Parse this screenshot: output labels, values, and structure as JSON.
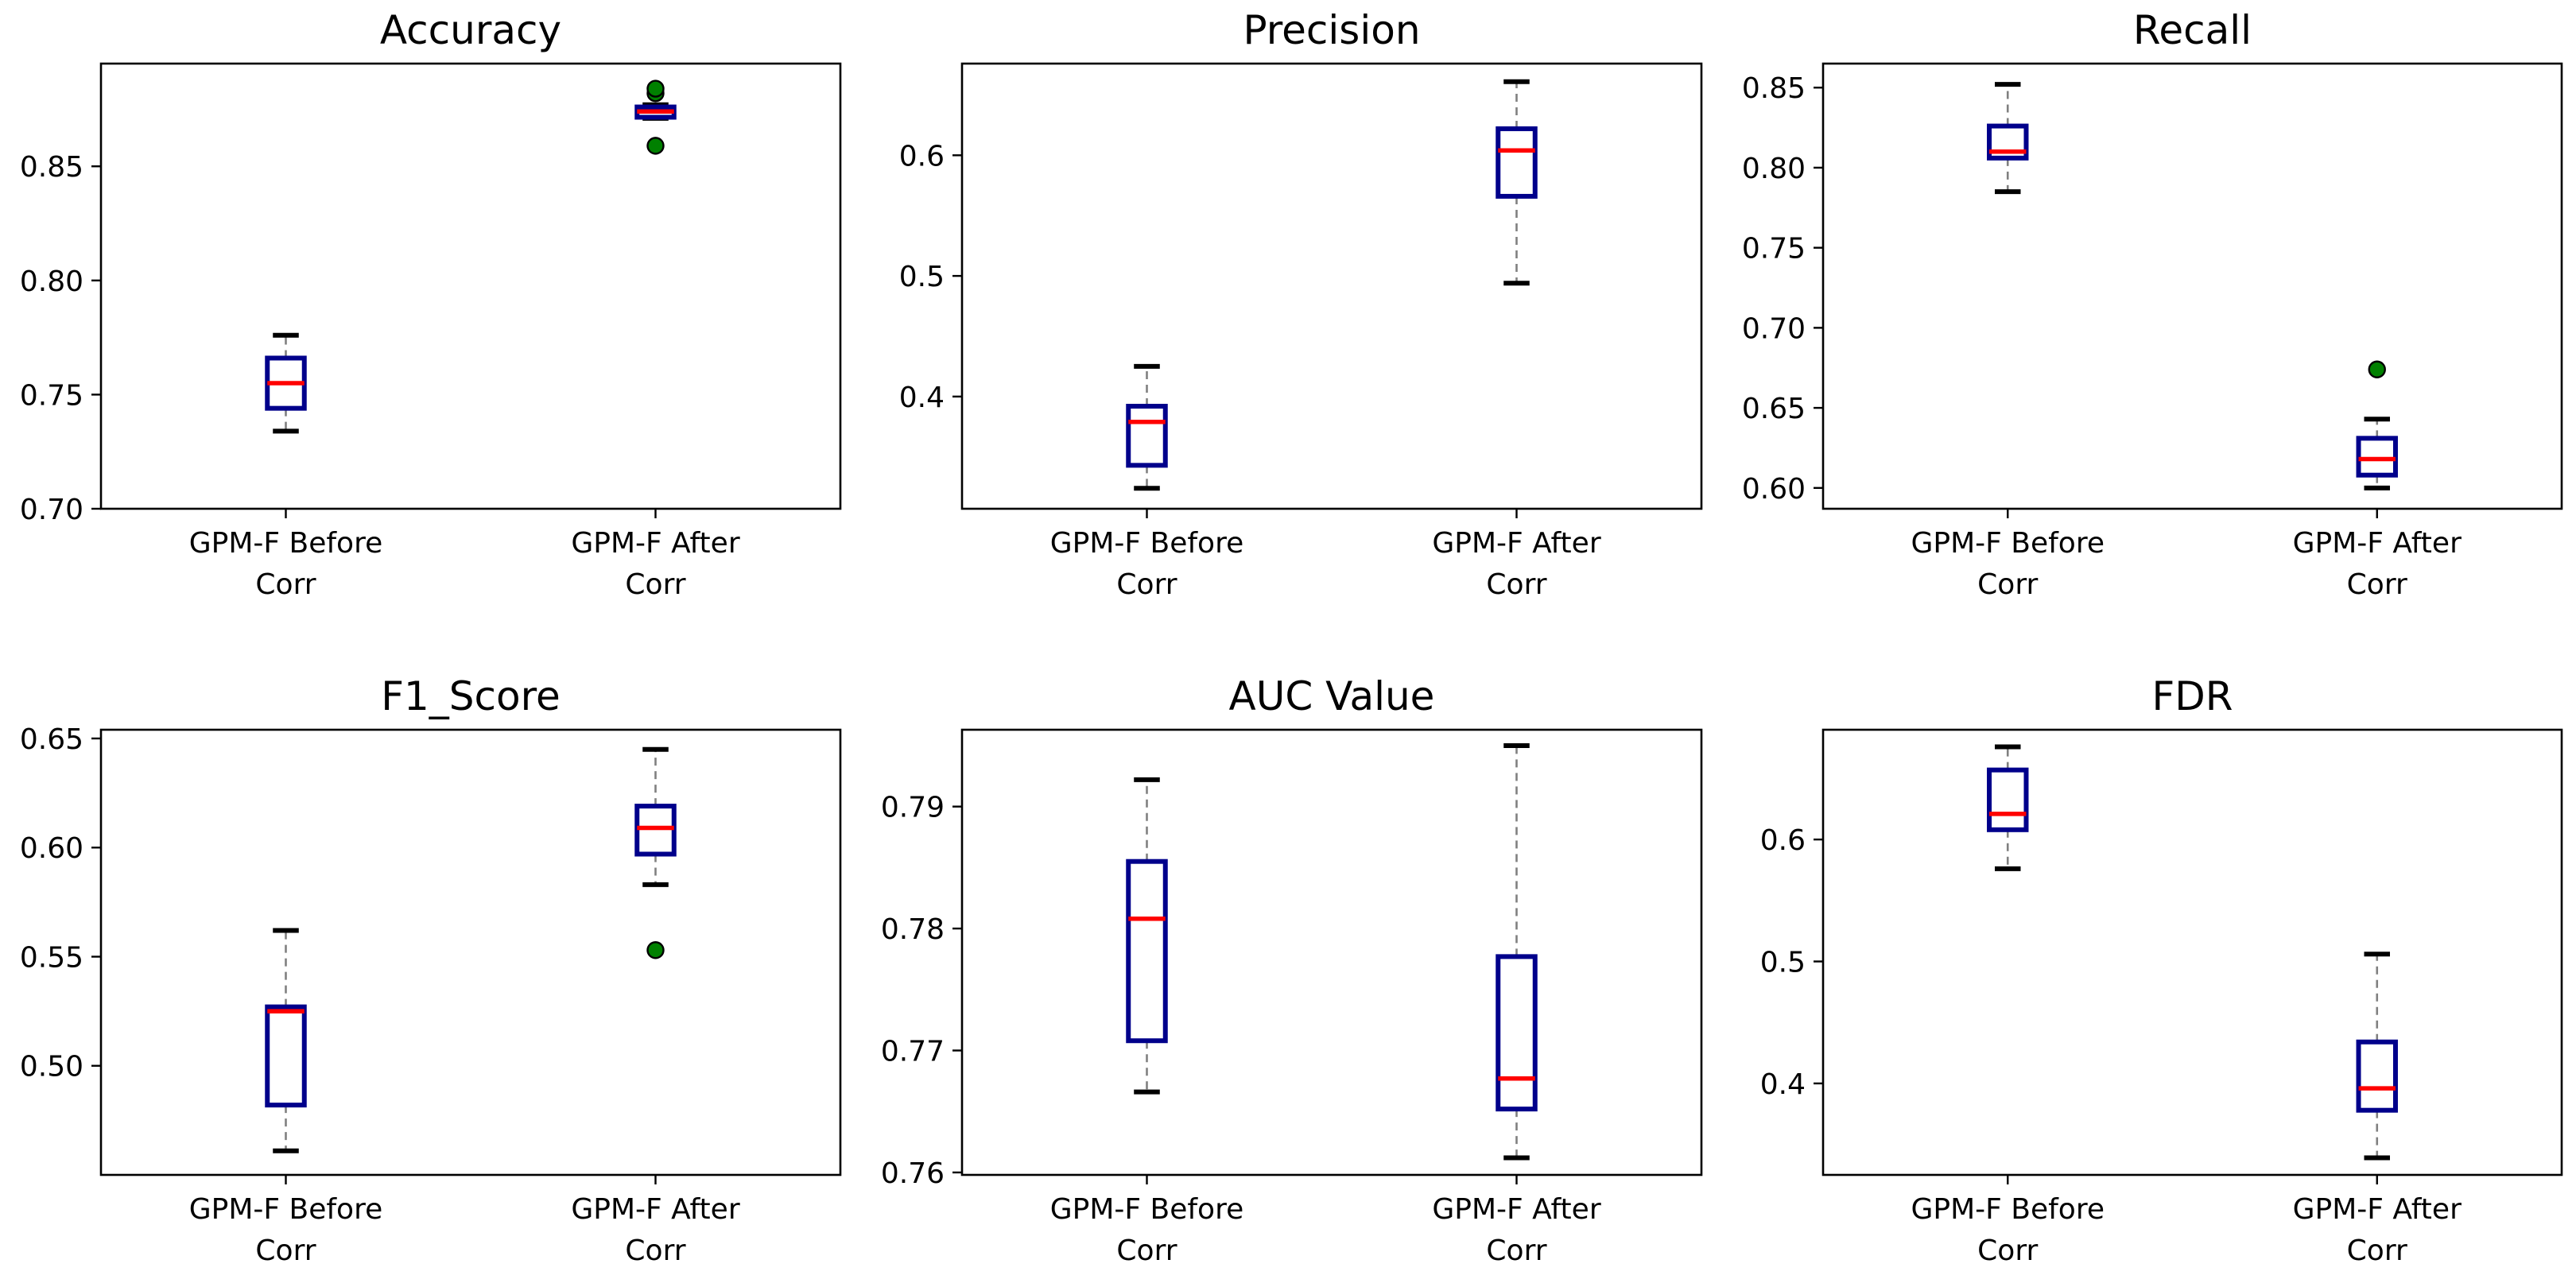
{
  "figure": {
    "layout": "2 rows x 3 columns",
    "colors": {
      "box": "#00008b",
      "median": "#ff0000",
      "whisker": "#808080",
      "cap": "#000000",
      "outlier_fill": "#008000",
      "outlier_edge": "#000000"
    }
  },
  "chart_data": [
    {
      "type": "box",
      "title": "Accuracy",
      "categories": [
        "GPM-F Before Corr",
        "GPM-F After Corr"
      ],
      "category_lines": [
        [
          "GPM-F Before",
          "Corr"
        ],
        [
          "GPM-F After",
          "Corr"
        ]
      ],
      "ylim": [
        0.7,
        0.895
      ],
      "yticks": [
        0.7,
        0.75,
        0.8,
        0.85
      ],
      "ytick_labels": [
        "0.70",
        "0.75",
        "0.80",
        "0.85"
      ],
      "boxes": [
        {
          "whislo": 0.734,
          "q1": 0.744,
          "med": 0.755,
          "q3": 0.766,
          "whishi": 0.776,
          "fliers": []
        },
        {
          "whislo": 0.871,
          "q1": 0.8715,
          "med": 0.874,
          "q3": 0.876,
          "whishi": 0.877,
          "fliers": [
            0.859,
            0.882,
            0.884
          ]
        }
      ]
    },
    {
      "type": "box",
      "title": "Precision",
      "categories": [
        "GPM-F Before Corr",
        "GPM-F After Corr"
      ],
      "category_lines": [
        [
          "GPM-F Before",
          "Corr"
        ],
        [
          "GPM-F After",
          "Corr"
        ]
      ],
      "ylim": [
        0.307,
        0.676
      ],
      "yticks": [
        0.4,
        0.5,
        0.6
      ],
      "ytick_labels": [
        "0.4",
        "0.5",
        "0.6"
      ],
      "boxes": [
        {
          "whislo": 0.324,
          "q1": 0.343,
          "med": 0.379,
          "q3": 0.392,
          "whishi": 0.425,
          "fliers": []
        },
        {
          "whislo": 0.494,
          "q1": 0.566,
          "med": 0.604,
          "q3": 0.622,
          "whishi": 0.661,
          "fliers": []
        }
      ]
    },
    {
      "type": "box",
      "title": "Recall",
      "categories": [
        "GPM-F Before Corr",
        "GPM-F After Corr"
      ],
      "category_lines": [
        [
          "GPM-F Before",
          "Corr"
        ],
        [
          "GPM-F After",
          "Corr"
        ]
      ],
      "ylim": [
        0.587,
        0.865
      ],
      "yticks": [
        0.6,
        0.65,
        0.7,
        0.75,
        0.8,
        0.85
      ],
      "ytick_labels": [
        "0.60",
        "0.65",
        "0.70",
        "0.75",
        "0.80",
        "0.85"
      ],
      "boxes": [
        {
          "whislo": 0.785,
          "q1": 0.806,
          "med": 0.81,
          "q3": 0.826,
          "whishi": 0.852,
          "fliers": []
        },
        {
          "whislo": 0.6,
          "q1": 0.608,
          "med": 0.618,
          "q3": 0.631,
          "whishi": 0.643,
          "fliers": [
            0.674
          ]
        }
      ]
    },
    {
      "type": "box",
      "title": "F1_Score",
      "categories": [
        "GPM-F Before Corr",
        "GPM-F After Corr"
      ],
      "category_lines": [
        [
          "GPM-F Before",
          "Corr"
        ],
        [
          "GPM-F After",
          "Corr"
        ]
      ],
      "ylim": [
        0.45,
        0.654
      ],
      "yticks": [
        0.5,
        0.55,
        0.6,
        0.65
      ],
      "ytick_labels": [
        "0.50",
        "0.55",
        "0.60",
        "0.65"
      ],
      "boxes": [
        {
          "whislo": 0.461,
          "q1": 0.482,
          "med": 0.525,
          "q3": 0.527,
          "whishi": 0.562,
          "fliers": []
        },
        {
          "whislo": 0.583,
          "q1": 0.597,
          "med": 0.609,
          "q3": 0.619,
          "whishi": 0.645,
          "fliers": [
            0.553
          ]
        }
      ]
    },
    {
      "type": "box",
      "title": "AUC Value",
      "categories": [
        "GPM-F Before Corr",
        "GPM-F After Corr"
      ],
      "category_lines": [
        [
          "GPM-F Before",
          "Corr"
        ],
        [
          "GPM-F After",
          "Corr"
        ]
      ],
      "ylim": [
        0.7598,
        0.7963
      ],
      "yticks": [
        0.76,
        0.77,
        0.78,
        0.79
      ],
      "ytick_labels": [
        "0.76",
        "0.77",
        "0.78",
        "0.79"
      ],
      "boxes": [
        {
          "whislo": 0.7666,
          "q1": 0.7708,
          "med": 0.7808,
          "q3": 0.7855,
          "whishi": 0.7922,
          "fliers": []
        },
        {
          "whislo": 0.7612,
          "q1": 0.7652,
          "med": 0.7677,
          "q3": 0.7777,
          "whishi": 0.795,
          "fliers": []
        }
      ]
    },
    {
      "type": "box",
      "title": "FDR",
      "categories": [
        "GPM-F Before Corr",
        "GPM-F After Corr"
      ],
      "category_lines": [
        [
          "GPM-F Before",
          "Corr"
        ],
        [
          "GPM-F After",
          "Corr"
        ]
      ],
      "ylim": [
        0.325,
        0.69
      ],
      "yticks": [
        0.4,
        0.5,
        0.6
      ],
      "ytick_labels": [
        "0.4",
        "0.5",
        "0.6"
      ],
      "boxes": [
        {
          "whislo": 0.576,
          "q1": 0.608,
          "med": 0.621,
          "q3": 0.657,
          "whishi": 0.676,
          "fliers": []
        },
        {
          "whislo": 0.339,
          "q1": 0.378,
          "med": 0.396,
          "q3": 0.434,
          "whishi": 0.506,
          "fliers": []
        }
      ]
    }
  ]
}
